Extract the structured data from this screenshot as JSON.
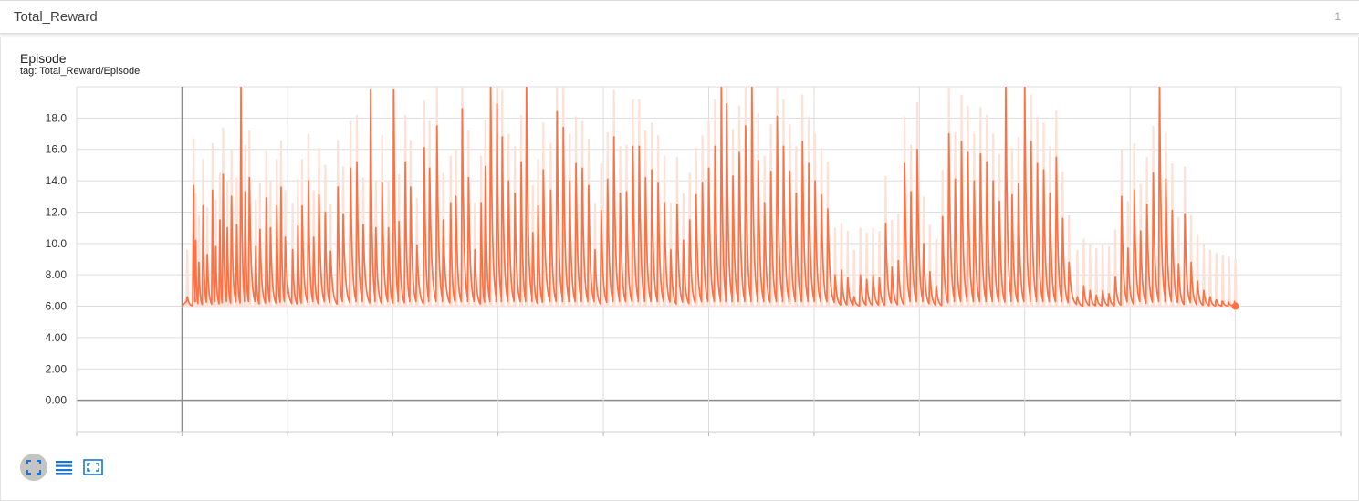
{
  "header": {
    "title": "Total_Reward",
    "count": "1"
  },
  "card": {
    "title": "Episode",
    "tag": "tag: Total_Reward/Episode"
  },
  "toolbar": {
    "items": [
      {
        "name": "fit-domain-button",
        "icon": "fit-to-data-icon"
      },
      {
        "name": "toggle-log-button",
        "icon": "lines-icon"
      },
      {
        "name": "expand-button",
        "icon": "expand-icon"
      }
    ]
  },
  "colors": {
    "series": "#ff7043",
    "series_light": "#fde0d6",
    "grid": "#dddddd",
    "axis": "#999999",
    "accent": "#1976d2"
  },
  "chart_data": {
    "type": "line",
    "title": "Episode",
    "xlabel": "",
    "ylabel": "",
    "ylim": [
      -2,
      20
    ],
    "xlim": [
      -1,
      11
    ],
    "yticks": [
      0,
      2,
      4,
      6,
      8,
      10,
      12,
      14,
      16,
      18
    ],
    "ytick_labels": [
      "0.00",
      "2.00",
      "4.00",
      "6.00",
      "8.00",
      "10.0",
      "12.0",
      "14.0",
      "16.0",
      "18.0"
    ],
    "xticks": [
      -1,
      0,
      1,
      2,
      3,
      4,
      5,
      6,
      7,
      8,
      9,
      10,
      11
    ],
    "grid": true,
    "series": [
      {
        "kind": "smoothed",
        "start_x": 0,
        "end_x": 10,
        "baseline": 6,
        "peaks": [
          [
            0.05,
            6.6
          ],
          [
            0.11,
            13.7
          ],
          [
            0.13,
            10.2
          ],
          [
            0.16,
            8.8
          ],
          [
            0.2,
            12.4
          ],
          [
            0.24,
            9.3
          ],
          [
            0.29,
            13.4
          ],
          [
            0.32,
            9.8
          ],
          [
            0.36,
            11.5
          ],
          [
            0.39,
            14.4
          ],
          [
            0.43,
            11.0
          ],
          [
            0.47,
            13.0
          ],
          [
            0.52,
            11.2
          ],
          [
            0.56,
            20.0
          ],
          [
            0.6,
            13.3
          ],
          [
            0.64,
            14.2
          ],
          [
            0.7,
            9.8
          ],
          [
            0.74,
            10.9
          ],
          [
            0.8,
            12.9
          ],
          [
            0.84,
            11.0
          ],
          [
            0.9,
            12.4
          ],
          [
            0.94,
            13.6
          ],
          [
            0.98,
            10.4
          ],
          [
            1.05,
            9.6
          ],
          [
            1.1,
            11.1
          ],
          [
            1.14,
            12.4
          ],
          [
            1.2,
            14.0
          ],
          [
            1.25,
            10.4
          ],
          [
            1.3,
            13.1
          ],
          [
            1.36,
            12.0
          ],
          [
            1.41,
            9.5
          ],
          [
            1.48,
            13.6
          ],
          [
            1.53,
            11.9
          ],
          [
            1.6,
            14.8
          ],
          [
            1.66,
            15.2
          ],
          [
            1.72,
            11.2
          ],
          [
            1.79,
            19.8
          ],
          [
            1.84,
            11.0
          ],
          [
            1.9,
            13.9
          ],
          [
            1.96,
            11.0
          ],
          [
            2.01,
            19.8
          ],
          [
            2.06,
            11.4
          ],
          [
            2.12,
            15.2
          ],
          [
            2.17,
            13.6
          ],
          [
            2.23,
            9.9
          ],
          [
            2.3,
            16.1
          ],
          [
            2.35,
            14.8
          ],
          [
            2.42,
            17.5
          ],
          [
            2.48,
            11.5
          ],
          [
            2.55,
            12.6
          ],
          [
            2.6,
            13.0
          ],
          [
            2.66,
            18.6
          ],
          [
            2.72,
            14.2
          ],
          [
            2.78,
            9.6
          ],
          [
            2.84,
            12.6
          ],
          [
            2.88,
            14.9
          ],
          [
            2.93,
            20.0
          ],
          [
            2.99,
            18.9
          ],
          [
            3.04,
            16.8
          ],
          [
            3.1,
            14.0
          ],
          [
            3.16,
            13.2
          ],
          [
            3.22,
            15.2
          ],
          [
            3.27,
            20.0
          ],
          [
            3.33,
            10.7
          ],
          [
            3.38,
            12.4
          ],
          [
            3.43,
            14.7
          ],
          [
            3.5,
            13.4
          ],
          [
            3.56,
            18.4
          ],
          [
            3.62,
            17.4
          ],
          [
            3.68,
            14.0
          ],
          [
            3.74,
            15.1
          ],
          [
            3.8,
            14.8
          ],
          [
            3.86,
            13.7
          ],
          [
            3.92,
            9.6
          ],
          [
            3.98,
            12.1
          ],
          [
            4.04,
            14.1
          ],
          [
            4.1,
            16.8
          ],
          [
            4.16,
            13.2
          ],
          [
            4.22,
            13.3
          ],
          [
            4.28,
            16.2
          ],
          [
            4.34,
            16.2
          ],
          [
            4.4,
            14.2
          ],
          [
            4.46,
            14.7
          ],
          [
            4.52,
            13.9
          ],
          [
            4.58,
            12.6
          ],
          [
            4.64,
            9.6
          ],
          [
            4.7,
            12.5
          ],
          [
            4.76,
            10.2
          ],
          [
            4.82,
            11.5
          ],
          [
            4.88,
            13.1
          ],
          [
            4.94,
            13.9
          ],
          [
            5.0,
            14.8
          ],
          [
            5.06,
            16.2
          ],
          [
            5.12,
            20.0
          ],
          [
            5.17,
            18.9
          ],
          [
            5.23,
            14.3
          ],
          [
            5.29,
            15.8
          ],
          [
            5.35,
            17.5
          ],
          [
            5.41,
            20.0
          ],
          [
            5.47,
            15.3
          ],
          [
            5.53,
            12.6
          ],
          [
            5.59,
            14.6
          ],
          [
            5.65,
            18.1
          ],
          [
            5.71,
            16.2
          ],
          [
            5.77,
            14.6
          ],
          [
            5.83,
            13.2
          ],
          [
            5.89,
            16.5
          ],
          [
            5.95,
            15.1
          ],
          [
            6.01,
            14.0
          ],
          [
            6.07,
            13.1
          ],
          [
            6.13,
            12.2
          ],
          [
            6.2,
            8.0
          ],
          [
            6.26,
            8.3
          ],
          [
            6.32,
            7.8
          ],
          [
            6.38,
            6.6
          ],
          [
            6.44,
            8.0
          ],
          [
            6.5,
            7.7
          ],
          [
            6.56,
            8.0
          ],
          [
            6.62,
            7.8
          ],
          [
            6.68,
            11.3
          ],
          [
            6.74,
            8.5
          ],
          [
            6.8,
            8.9
          ],
          [
            6.86,
            15.1
          ],
          [
            6.92,
            13.3
          ],
          [
            6.98,
            16.0
          ],
          [
            7.04,
            10.0
          ],
          [
            7.1,
            8.2
          ],
          [
            7.16,
            7.3
          ],
          [
            7.22,
            11.7
          ],
          [
            7.28,
            17.0
          ],
          [
            7.34,
            14.1
          ],
          [
            7.4,
            16.5
          ],
          [
            7.46,
            15.8
          ],
          [
            7.52,
            14.0
          ],
          [
            7.58,
            15.7
          ],
          [
            7.64,
            15.2
          ],
          [
            7.7,
            14.0
          ],
          [
            7.76,
            12.7
          ],
          [
            7.82,
            20.0
          ],
          [
            7.88,
            13.1
          ],
          [
            7.94,
            13.8
          ],
          [
            8.0,
            20.0
          ],
          [
            8.06,
            16.5
          ],
          [
            8.12,
            15.1
          ],
          [
            8.18,
            14.7
          ],
          [
            8.24,
            13.2
          ],
          [
            8.3,
            15.5
          ],
          [
            8.36,
            11.6
          ],
          [
            8.42,
            8.8
          ],
          [
            8.5,
            6.6
          ],
          [
            8.56,
            7.3
          ],
          [
            8.62,
            7.0
          ],
          [
            8.68,
            6.7
          ],
          [
            8.74,
            7.0
          ],
          [
            8.8,
            6.8
          ],
          [
            8.86,
            7.9
          ],
          [
            8.92,
            13.0
          ],
          [
            8.98,
            9.7
          ],
          [
            9.04,
            13.4
          ],
          [
            9.1,
            10.8
          ],
          [
            9.16,
            12.5
          ],
          [
            9.22,
            14.5
          ],
          [
            9.28,
            20.0
          ],
          [
            9.34,
            14.1
          ],
          [
            9.4,
            12.1
          ],
          [
            9.46,
            8.7
          ],
          [
            9.52,
            11.9
          ],
          [
            9.58,
            8.8
          ],
          [
            9.64,
            7.6
          ],
          [
            9.7,
            7.0
          ],
          [
            9.76,
            6.6
          ],
          [
            9.82,
            6.4
          ],
          [
            9.88,
            6.3
          ],
          [
            9.94,
            6.2
          ],
          [
            10.0,
            6.0
          ]
        ]
      }
    ],
    "last_point": {
      "x": 10,
      "y": 6.0
    }
  }
}
